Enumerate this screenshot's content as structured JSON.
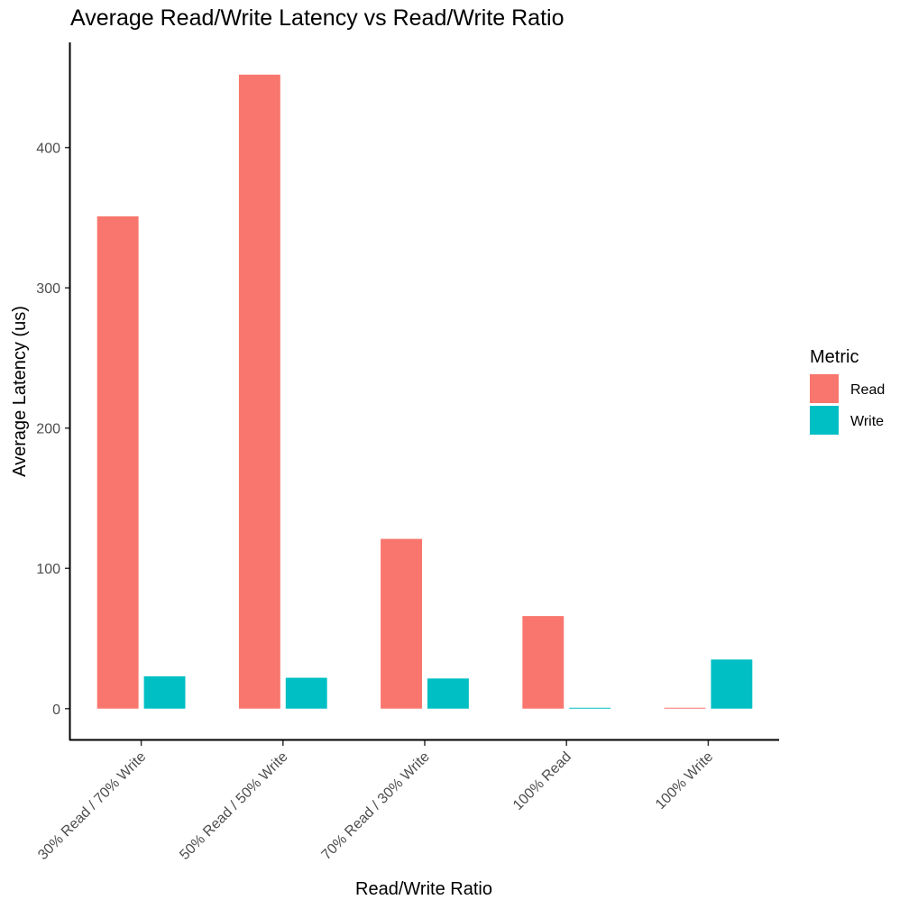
{
  "chart_data": {
    "type": "bar",
    "title": "Average Read/Write Latency vs Read/Write Ratio",
    "xlabel": "Read/Write Ratio",
    "ylabel": "Average Latency (us)",
    "categories": [
      "30% Read / 70% Write",
      "50% Read / 50% Write",
      "70% Read / 30% Write",
      "100% Read",
      "100% Write"
    ],
    "series": [
      {
        "name": "Read",
        "values": [
          351,
          452,
          121,
          66,
          0
        ],
        "color": "#F8766D"
      },
      {
        "name": "Write",
        "values": [
          23,
          22,
          21.5,
          0,
          35
        ],
        "color": "#00BFC4"
      }
    ],
    "ylim": [
      -22,
      475
    ],
    "yticks": [
      0,
      100,
      200,
      300,
      400
    ],
    "legend": {
      "title": "Metric",
      "placement": "right"
    },
    "grid": false
  }
}
